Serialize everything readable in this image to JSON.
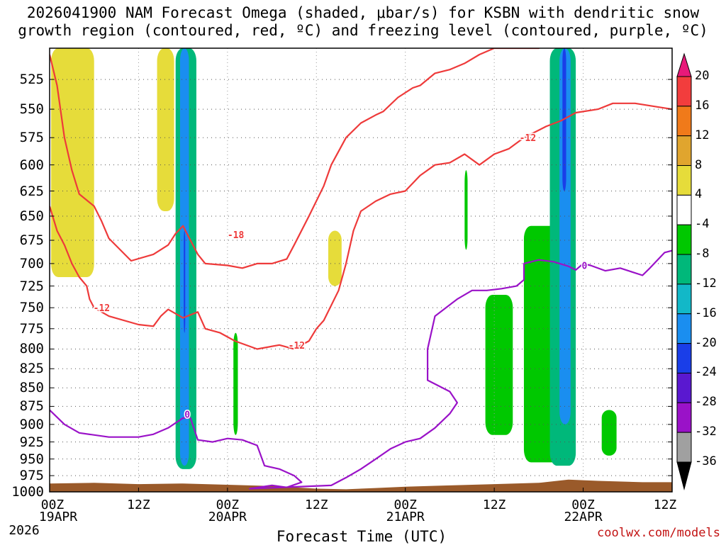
{
  "chart_data": {
    "type": "heatmap",
    "title_line1": "2026041900 NAM Forecast Omega (shaded, μbar/s) for KSBN with dendritic snow",
    "title_line2": "growth region (contoured, red, ºC) and freezing level (contoured, purple, ºC)",
    "xlabel": "Forecast Time (UTC)",
    "credit": "coolwx.com/models",
    "y_ticks": [
      "525",
      "550",
      "575",
      "600",
      "625",
      "650",
      "675",
      "700",
      "725",
      "750",
      "775",
      "800",
      "825",
      "850",
      "875",
      "900",
      "925",
      "950",
      "975",
      "1000"
    ],
    "y_range_hpa": [
      1000,
      500
    ],
    "x_tick_labels": [
      "00Z",
      "12Z",
      "00Z",
      "12Z",
      "00Z",
      "12Z",
      "00Z",
      "12Z"
    ],
    "x_tick_hours": [
      0,
      12,
      24,
      36,
      48,
      60,
      72,
      84
    ],
    "x_dates": [
      "19APR",
      "20APR",
      "21APR",
      "22APR"
    ],
    "x_year": "2026",
    "contour_labels": [
      "-18",
      "-12",
      "-12",
      "-12",
      "0",
      "0"
    ],
    "colorbar_labels": [
      "20",
      "16",
      "12",
      "8",
      "4",
      "-4",
      "-8",
      "-12",
      "-16",
      "-20",
      "-24",
      "-28",
      "-32",
      "-36"
    ],
    "colorbar_colors": [
      "#e8197a",
      "#f23d3d",
      "#f07a1a",
      "#e0a52e",
      "#e6dc3a",
      "#ffffff",
      "#00c800",
      "#00b87a",
      "#12b8c8",
      "#1a8ef0",
      "#1a3ee8",
      "#5a18d0",
      "#9a12c8",
      "#a0a0a0",
      "#000000"
    ],
    "omega_shading": [
      {
        "hour": 0.2,
        "hour_end": 6,
        "p_top": 500,
        "p_bot": 715,
        "value": 6
      },
      {
        "hour": 14.5,
        "hour_end": 16.8,
        "p_top": 500,
        "p_bot": 645,
        "value": 6
      },
      {
        "hour": 17,
        "hour_end": 19.8,
        "p_top": 500,
        "p_bot": 965,
        "value": -8
      },
      {
        "hour": 17.6,
        "hour_end": 18.8,
        "p_top": 500,
        "p_bot": 960,
        "value": -16
      },
      {
        "hour": 18.1,
        "hour_end": 18.3,
        "p_top": 665,
        "p_bot": 780,
        "value": -22
      },
      {
        "hour": 24.8,
        "hour_end": 25.4,
        "p_top": 780,
        "p_bot": 915,
        "value": -6
      },
      {
        "hour": 37.6,
        "hour_end": 39.4,
        "p_top": 665,
        "p_bot": 725,
        "value": 6
      },
      {
        "hour": 56,
        "hour_end": 56.4,
        "p_top": 605,
        "p_bot": 685,
        "value": -6
      },
      {
        "hour": 58.8,
        "hour_end": 62.5,
        "p_top": 735,
        "p_bot": 915,
        "value": -6
      },
      {
        "hour": 64,
        "hour_end": 69,
        "p_top": 660,
        "p_bot": 955,
        "value": -6
      },
      {
        "hour": 67.5,
        "hour_end": 71,
        "p_top": 500,
        "p_bot": 960,
        "value": -10
      },
      {
        "hour": 68.8,
        "hour_end": 70.3,
        "p_top": 500,
        "p_bot": 900,
        "value": -16
      },
      {
        "hour": 69.2,
        "hour_end": 69.7,
        "p_top": 500,
        "p_bot": 625,
        "value": -22
      },
      {
        "hour": 74.5,
        "hour_end": 76.5,
        "p_top": 880,
        "p_bot": 945,
        "value": -6
      }
    ],
    "dgz_warm_edge_minus12": [
      [
        0,
        505
      ],
      [
        1,
        530
      ],
      [
        2,
        575
      ],
      [
        3,
        605
      ],
      [
        4,
        628
      ],
      [
        6,
        640
      ],
      [
        7,
        655
      ],
      [
        8,
        673
      ],
      [
        11,
        697
      ],
      [
        14,
        690
      ],
      [
        16,
        680
      ],
      [
        17,
        668
      ],
      [
        18,
        660
      ],
      [
        19,
        675
      ],
      [
        20,
        690
      ],
      [
        21,
        700
      ],
      [
        24,
        702
      ],
      [
        26,
        705
      ],
      [
        28,
        700
      ],
      [
        30,
        700
      ],
      [
        32,
        695
      ],
      [
        33,
        680
      ],
      [
        35,
        650
      ],
      [
        37,
        620
      ],
      [
        38,
        600
      ],
      [
        40,
        575
      ],
      [
        42,
        562
      ],
      [
        44,
        555
      ],
      [
        45,
        552
      ],
      [
        47,
        540
      ],
      [
        49,
        532
      ],
      [
        50,
        530
      ],
      [
        52,
        520
      ],
      [
        54,
        517
      ],
      [
        56,
        512
      ],
      [
        58,
        505
      ],
      [
        60,
        500
      ],
      [
        63,
        500
      ],
      [
        66,
        500
      ],
      [
        68,
        495
      ]
    ],
    "dgz_cold_edge_minus18": [
      [
        0,
        640
      ],
      [
        1,
        665
      ],
      [
        2,
        680
      ],
      [
        3,
        700
      ],
      [
        4,
        715
      ],
      [
        5,
        725
      ],
      [
        5.4,
        740
      ],
      [
        6,
        750
      ],
      [
        8,
        760
      ],
      [
        12,
        770
      ],
      [
        14,
        772
      ],
      [
        15,
        760
      ],
      [
        16,
        752
      ],
      [
        18,
        762
      ],
      [
        20,
        755
      ],
      [
        21,
        775
      ],
      [
        23,
        780
      ],
      [
        25,
        790
      ],
      [
        28,
        800
      ],
      [
        31,
        795
      ],
      [
        33,
        800
      ],
      [
        35,
        790
      ],
      [
        36,
        775
      ],
      [
        37,
        765
      ],
      [
        39,
        730
      ],
      [
        40,
        700
      ],
      [
        41,
        665
      ],
      [
        42,
        645
      ],
      [
        44,
        635
      ],
      [
        46,
        628
      ],
      [
        48,
        625
      ],
      [
        50,
        610
      ],
      [
        52,
        600
      ],
      [
        54,
        598
      ],
      [
        56,
        590
      ],
      [
        58,
        600
      ],
      [
        60,
        590
      ],
      [
        62,
        585
      ],
      [
        64,
        575
      ],
      [
        67,
        565
      ],
      [
        69,
        560
      ],
      [
        71,
        553
      ],
      [
        74,
        550
      ],
      [
        76,
        545
      ],
      [
        79,
        545
      ],
      [
        82,
        548
      ],
      [
        84,
        550
      ]
    ],
    "freezing_level_0C": [
      [
        0,
        880
      ],
      [
        2,
        900
      ],
      [
        4,
        912
      ],
      [
        8,
        918
      ],
      [
        12,
        918
      ],
      [
        14,
        914
      ],
      [
        16,
        905
      ],
      [
        18,
        891
      ],
      [
        19,
        891
      ],
      [
        20,
        922
      ],
      [
        22,
        925
      ],
      [
        24,
        920
      ],
      [
        26,
        922
      ],
      [
        28,
        930
      ],
      [
        29,
        960
      ],
      [
        31,
        965
      ],
      [
        33,
        975
      ],
      [
        34,
        985
      ],
      [
        32,
        993
      ],
      [
        30,
        990
      ],
      [
        27,
        995
      ],
      [
        38,
        990
      ],
      [
        40,
        978
      ],
      [
        42,
        965
      ],
      [
        44,
        950
      ],
      [
        46,
        935
      ],
      [
        48,
        925
      ],
      [
        50,
        920
      ],
      [
        52,
        905
      ],
      [
        54,
        885
      ],
      [
        55,
        870
      ],
      [
        54,
        855
      ],
      [
        51,
        840
      ],
      [
        51,
        800
      ],
      [
        52,
        760
      ],
      [
        55,
        740
      ],
      [
        57,
        730
      ],
      [
        59,
        730
      ],
      [
        61,
        728
      ],
      [
        63,
        725
      ],
      [
        64,
        718
      ],
      [
        64,
        700
      ],
      [
        66,
        696
      ],
      [
        68,
        698
      ],
      [
        70,
        703
      ],
      [
        71,
        707
      ],
      [
        72,
        700
      ],
      [
        73,
        702
      ],
      [
        75,
        708
      ],
      [
        77,
        705
      ],
      [
        80,
        713
      ],
      [
        81,
        705
      ],
      [
        83,
        688
      ],
      [
        84,
        686
      ]
    ]
  }
}
